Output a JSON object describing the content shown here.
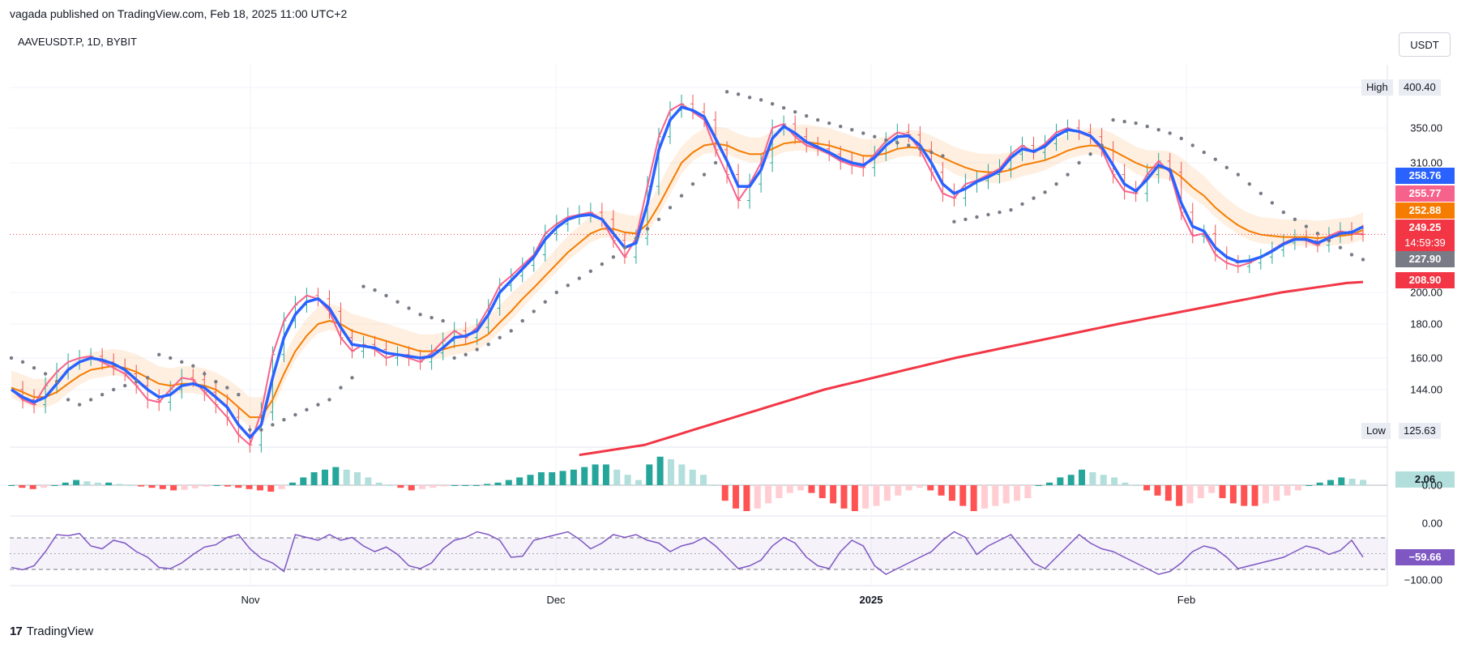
{
  "header": {
    "published": "vagada published on TradingView.com, Feb 18, 2025 11:00 UTC+2",
    "symbol": "AAVEUSDT.P, 1D, BYBIT",
    "currency_button": "USDT"
  },
  "high_low": {
    "high_label": "High",
    "high_value": "400.40",
    "low_label": "Low",
    "low_value": "125.63"
  },
  "price_axis_ticks": [
    "350.00",
    "310.00",
    "200.00",
    "180.00",
    "160.00",
    "144.00"
  ],
  "price_badges": [
    {
      "value": "258.76",
      "color": "#2962ff"
    },
    {
      "value": "255.77",
      "color": "#f7628c"
    },
    {
      "value": "252.88",
      "color": "#f57c00"
    },
    {
      "value": "227.90",
      "color": "#787b86"
    },
    {
      "value": "208.90",
      "color": "#f23645"
    }
  ],
  "last_price": {
    "value": "249.25",
    "countdown": "14:59:39",
    "color": "#f23645"
  },
  "macd_badge": {
    "value": "2.06",
    "color": "#b2dfdb"
  },
  "macd_axis_tick": "0.00",
  "rsi_axis_ticks": [
    "0.00",
    "−100.00"
  ],
  "rsi_badge": {
    "value": "−59.66",
    "color": "#7e57c2"
  },
  "x_axis": [
    {
      "label": "Nov",
      "bold": false
    },
    {
      "label": "Dec",
      "bold": false
    },
    {
      "label": "2025",
      "bold": true
    },
    {
      "label": "Feb",
      "bold": false
    }
  ],
  "branding": {
    "name": "TradingView",
    "mark": "17"
  },
  "chart_data": [
    {
      "type": "candlestick",
      "title": "AAVEUSDT.P, 1D, BYBIT",
      "ylim": [
        125.63,
        400.4
      ],
      "series": [
        {
          "name": "Close",
          "values": [
            144,
            140,
            138,
            146,
            153,
            158,
            160,
            161,
            158,
            155,
            152,
            146,
            140,
            139,
            144,
            150,
            149,
            143,
            138,
            133,
            126,
            122,
            135,
            162,
            182,
            192,
            198,
            196,
            188,
            172,
            164,
            168,
            165,
            160,
            162,
            160,
            158,
            163,
            170,
            176,
            172,
            178,
            190,
            206,
            214,
            223,
            232,
            250,
            258,
            264,
            266,
            268,
            262,
            244,
            230,
            246,
            290,
            340,
            372,
            380,
            370,
            360,
            325,
            300,
            278,
            292,
            310,
            350,
            355,
            340,
            330,
            326,
            320,
            312,
            308,
            306,
            320,
            335,
            345,
            342,
            325,
            302,
            284,
            280,
            292,
            295,
            300,
            305,
            320,
            330,
            322,
            332,
            345,
            350,
            345,
            340,
            325,
            300,
            286,
            284,
            300,
            312,
            302,
            268,
            248,
            250,
            232,
            225,
            222,
            225,
            230,
            236,
            242,
            246,
            244,
            240,
            248,
            252,
            250,
            249.25
          ]
        },
        {
          "name": "EMA fast",
          "values": [
            144,
            141,
            139,
            141,
            147,
            154,
            158,
            160,
            159,
            157,
            154,
            149,
            144,
            141,
            142,
            146,
            147,
            145,
            141,
            137,
            130,
            125,
            130,
            150,
            172,
            186,
            194,
            196,
            190,
            178,
            168,
            167,
            166,
            163,
            162,
            161,
            160,
            161,
            166,
            172,
            173,
            176,
            186,
            200,
            210,
            220,
            230,
            245,
            255,
            262,
            265,
            266,
            262,
            250,
            238,
            242,
            275,
            325,
            360,
            376,
            372,
            364,
            338,
            312,
            290,
            290,
            304,
            338,
            352,
            344,
            334,
            328,
            322,
            315,
            310,
            308,
            316,
            330,
            340,
            341,
            330,
            310,
            292,
            284,
            288,
            294,
            298,
            303,
            316,
            326,
            323,
            329,
            341,
            348,
            346,
            341,
            328,
            308,
            292,
            286,
            296,
            308,
            304,
            276,
            256,
            252,
            238,
            230,
            226,
            227,
            230,
            235,
            241,
            245,
            245,
            242,
            246,
            250,
            251,
            255.77
          ]
        },
        {
          "name": "EMA mid",
          "values": [
            145,
            143,
            141,
            141,
            143,
            147,
            151,
            154,
            155,
            156,
            155,
            153,
            150,
            147,
            146,
            147,
            147,
            146,
            144,
            141,
            137,
            133,
            133,
            140,
            152,
            164,
            173,
            180,
            182,
            180,
            176,
            174,
            172,
            170,
            168,
            166,
            164,
            164,
            165,
            167,
            168,
            170,
            174,
            181,
            188,
            196,
            204,
            214,
            224,
            234,
            242,
            250,
            254,
            254,
            251,
            250,
            258,
            274,
            292,
            310,
            322,
            330,
            332,
            330,
            324,
            320,
            320,
            326,
            332,
            334,
            334,
            332,
            330,
            326,
            322,
            318,
            318,
            321,
            326,
            328,
            327,
            322,
            316,
            310,
            306,
            303,
            302,
            302,
            304,
            308,
            310,
            313,
            318,
            324,
            328,
            330,
            329,
            324,
            317,
            310,
            306,
            306,
            305,
            298,
            289,
            282,
            272,
            264,
            257,
            252,
            249,
            248,
            247,
            247,
            247,
            246,
            247,
            248,
            249,
            252.88
          ]
        },
        {
          "name": "Parabolic SAR",
          "values": [
            160,
            158,
            155,
            152,
            148,
            140,
            138,
            140,
            142,
            144,
            146,
            148,
            150,
            162,
            160,
            158,
            156,
            152,
            148,
            145,
            142,
            128,
            128,
            130,
            132,
            134,
            136,
            138,
            140,
            145,
            150,
            205,
            202,
            198,
            194,
            190,
            186,
            184,
            182,
            160,
            162,
            165,
            168,
            172,
            176,
            182,
            188,
            194,
            200,
            206,
            212,
            218,
            224,
            230,
            238,
            246,
            254,
            262,
            272,
            282,
            292,
            300,
            310,
            395,
            392,
            388,
            385,
            380,
            375,
            370,
            365,
            360,
            356,
            352,
            348,
            344,
            340,
            336,
            333,
            330,
            326,
            322,
            318,
            260,
            262,
            264,
            266,
            268,
            270,
            275,
            280,
            285,
            292,
            300,
            310,
            320,
            330,
            360,
            358,
            356,
            352,
            348,
            344,
            338,
            330,
            322,
            314,
            306,
            300,
            292,
            284,
            276,
            268,
            262,
            256,
            250,
            244,
            238,
            232,
            227.9
          ]
        },
        {
          "name": "SMA 200",
          "values": [
            118,
            119,
            120,
            121,
            122,
            124,
            126,
            128,
            130,
            132,
            134,
            136,
            138,
            140,
            142,
            144,
            146,
            148,
            150,
            152,
            154,
            156,
            158,
            160,
            162,
            164,
            166,
            168,
            170,
            172,
            174,
            176,
            178,
            180,
            182,
            184,
            186,
            188,
            190,
            192,
            194,
            196,
            198,
            200,
            202,
            204,
            206,
            208,
            208.9
          ]
        }
      ]
    },
    {
      "type": "bar",
      "title": "",
      "ylim": [
        -14,
        14
      ],
      "series": [
        {
          "name": "MACD histogram",
          "values": [
            0,
            -1,
            -1.5,
            -1,
            0,
            1,
            2,
            1.5,
            1,
            1,
            0.5,
            0,
            -0.5,
            -1,
            -1.5,
            -2,
            -1.8,
            -1.2,
            -0.6,
            0,
            -0.5,
            -1,
            -1.5,
            -2,
            -2.5,
            -1.5,
            1,
            3,
            5,
            6,
            7,
            6,
            5,
            3,
            1,
            0,
            -1,
            -2,
            -1.5,
            -1,
            -0.5,
            0,
            0,
            0,
            0.5,
            1,
            2,
            3,
            4,
            5,
            5,
            5.5,
            6,
            7,
            8,
            8,
            6,
            4,
            2,
            8,
            11,
            10,
            8,
            6,
            4,
            0,
            -6,
            -9,
            -10,
            -9,
            -7,
            -5,
            -3,
            -2,
            -3,
            -5,
            -7,
            -9,
            -10,
            -9,
            -8,
            -6,
            -4,
            -2,
            -1,
            -2,
            -4,
            -6,
            -8,
            -10,
            -9,
            -8,
            -7,
            -6,
            -5,
            0,
            1,
            3,
            4,
            6,
            5,
            4,
            3,
            1,
            0,
            -2,
            -4,
            -6,
            -8,
            -7,
            -5,
            -3,
            -5,
            -7,
            -8,
            -8,
            -7,
            -6,
            -4,
            -2,
            0,
            1,
            2,
            3,
            2.5,
            2.06
          ]
        }
      ]
    },
    {
      "type": "line",
      "title": "",
      "ylim": [
        -100,
        0
      ],
      "series": [
        {
          "name": "Oscillator",
          "values": [
            -78,
            -82,
            -75,
            -50,
            -20,
            -22,
            -18,
            -40,
            -45,
            -30,
            -35,
            -50,
            -60,
            -78,
            -80,
            -70,
            -55,
            -42,
            -38,
            -25,
            -20,
            -45,
            -62,
            -70,
            -85,
            -20,
            -25,
            -30,
            -20,
            -30,
            -25,
            -40,
            -50,
            -42,
            -55,
            -75,
            -80,
            -70,
            -45,
            -30,
            -25,
            -15,
            -20,
            -30,
            -60,
            -58,
            -30,
            -25,
            -20,
            -15,
            -28,
            -45,
            -35,
            -20,
            -25,
            -20,
            -30,
            -35,
            -50,
            -40,
            -35,
            -25,
            -40,
            -60,
            -80,
            -75,
            -65,
            -40,
            -25,
            -35,
            -60,
            -75,
            -80,
            -50,
            -30,
            -40,
            -75,
            -90,
            -80,
            -70,
            -60,
            -50,
            -30,
            -15,
            -25,
            -55,
            -40,
            -30,
            -20,
            -45,
            -70,
            -80,
            -60,
            -40,
            -20,
            -35,
            -45,
            -50,
            -60,
            -70,
            -80,
            -90,
            -85,
            -70,
            -50,
            -40,
            -45,
            -60,
            -80,
            -75,
            -70,
            -65,
            -60,
            -50,
            -40,
            -45,
            -55,
            -48,
            -30,
            -59.66
          ]
        }
      ]
    }
  ]
}
